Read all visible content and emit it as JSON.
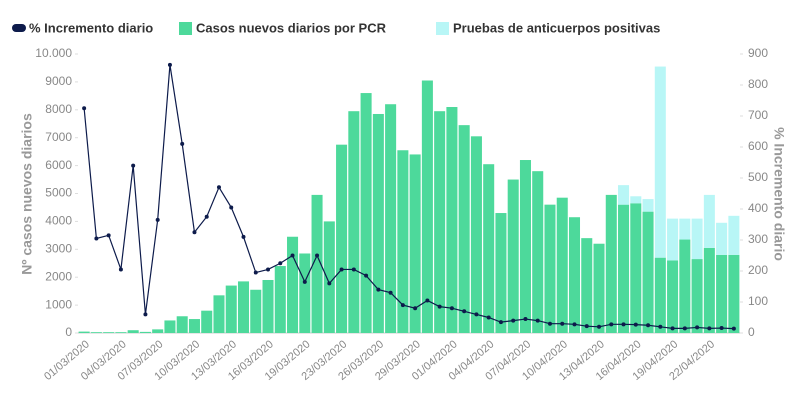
{
  "chart_data": {
    "type": "bar_line",
    "categories": [
      "01/03/2020",
      null,
      null,
      "04/03/2020",
      null,
      null,
      "07/03/2020",
      null,
      null,
      "10/03/2020",
      null,
      null,
      "13/03/2020",
      null,
      null,
      "16/03/2020",
      null,
      null,
      "19/03/2020",
      null,
      null,
      "23/03/2020",
      null,
      null,
      "26/03/2020",
      null,
      null,
      "29/03/2020",
      null,
      null,
      "01/04/2020",
      null,
      null,
      "04/04/2020",
      null,
      null,
      "07/04/2020",
      null,
      null,
      "10/04/2020",
      null,
      null,
      "13/04/2020",
      null,
      null,
      "16/04/2020",
      null,
      null,
      "19/04/2020",
      null,
      null,
      "22/04/2020",
      null,
      null
    ],
    "series": [
      {
        "name": "% Incremento diario",
        "type": "line",
        "axis": "y2",
        "color": "#0d1b4b",
        "values": [
          725,
          305,
          315,
          205,
          540,
          60,
          365,
          865,
          610,
          325,
          375,
          470,
          405,
          310,
          195,
          205,
          225,
          250,
          165,
          250,
          160,
          205,
          205,
          185,
          140,
          130,
          90,
          80,
          105,
          85,
          80,
          70,
          60,
          50,
          35,
          40,
          45,
          40,
          30,
          30,
          28,
          22,
          20,
          28,
          28,
          27,
          25,
          20,
          15,
          15,
          18,
          15,
          16,
          14
        ]
      },
      {
        "name": "Casos nuevos diarios por PCR",
        "type": "bar",
        "color": "#4dd99b",
        "values": [
          50,
          30,
          30,
          30,
          100,
          40,
          130,
          450,
          600,
          500,
          800,
          1350,
          1700,
          1850,
          1550,
          1900,
          2400,
          3450,
          2850,
          4950,
          4000,
          6750,
          7950,
          8600,
          7850,
          8200,
          6550,
          6400,
          9050,
          7950,
          8100,
          7450,
          7050,
          6050,
          4300,
          5500,
          6200,
          5800,
          4600,
          4850,
          4150,
          3400,
          3200,
          4950,
          4600,
          4650,
          4350,
          2700,
          2600,
          3350,
          2650,
          3050,
          2800,
          2800
        ]
      },
      {
        "name": "Pruebas de anticuerpos positivas",
        "type": "bar",
        "color": "#b8f6f6",
        "values": [
          null,
          null,
          null,
          null,
          null,
          null,
          null,
          null,
          null,
          null,
          null,
          null,
          null,
          null,
          null,
          null,
          null,
          null,
          null,
          null,
          null,
          null,
          null,
          null,
          null,
          null,
          null,
          null,
          null,
          null,
          null,
          null,
          null,
          null,
          null,
          null,
          null,
          null,
          null,
          null,
          null,
          null,
          null,
          null,
          700,
          250,
          450,
          6850,
          1500,
          750,
          1450,
          1900,
          1150,
          1400
        ]
      }
    ],
    "ylabel": "Nº casos nuevos diarios",
    "y2label": "% Incremento diario",
    "ylim": [
      0,
      10000
    ],
    "yticks": [
      0,
      1000,
      2000,
      3000,
      4000,
      5000,
      6000,
      7000,
      8000,
      9000,
      {
        "value": 10000,
        "label": "10.000"
      }
    ],
    "y2lim": [
      0,
      900
    ],
    "y2ticks": [
      0,
      100,
      200,
      300,
      400,
      500,
      600,
      700,
      800,
      900
    ],
    "legend": "top-left"
  }
}
